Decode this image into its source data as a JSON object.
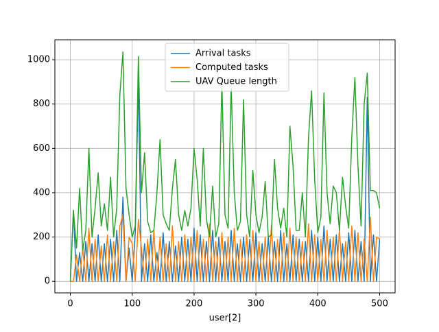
{
  "chart_data": {
    "type": "line",
    "x_label": "user[2]",
    "x": [
      0,
      5,
      10,
      15,
      20,
      25,
      30,
      35,
      40,
      45,
      50,
      55,
      60,
      65,
      70,
      75,
      80,
      85,
      90,
      95,
      100,
      105,
      110,
      115,
      120,
      125,
      130,
      135,
      140,
      145,
      150,
      155,
      160,
      165,
      170,
      175,
      180,
      185,
      190,
      195,
      200,
      205,
      210,
      215,
      220,
      225,
      230,
      235,
      240,
      245,
      250,
      255,
      260,
      265,
      270,
      275,
      280,
      285,
      290,
      295,
      300,
      305,
      310,
      315,
      320,
      325,
      330,
      335,
      340,
      345,
      350,
      355,
      360,
      365,
      370,
      375,
      380,
      385,
      390,
      395,
      400,
      405,
      410,
      415,
      420,
      425,
      430,
      435,
      440,
      445,
      450,
      455,
      460,
      465,
      470,
      475,
      480,
      485,
      490,
      495,
      500
    ],
    "series": [
      {
        "name": "Arrival tasks",
        "color": "#1f77b4",
        "values": [
          0,
          320,
          0,
          130,
          0,
          180,
          0,
          170,
          0,
          210,
          0,
          170,
          0,
          190,
          0,
          230,
          0,
          380,
          0,
          150,
          0,
          220,
          920,
          0,
          170,
          0,
          210,
          0,
          130,
          0,
          220,
          0,
          180,
          0,
          160,
          0,
          200,
          0,
          190,
          0,
          240,
          0,
          210,
          0,
          180,
          0,
          230,
          0,
          200,
          0,
          180,
          0,
          230,
          0,
          170,
          0,
          200,
          0,
          190,
          0,
          220,
          0,
          170,
          0,
          200,
          0,
          180,
          0,
          230,
          0,
          170,
          0,
          210,
          0,
          190,
          0,
          180,
          0,
          230,
          0,
          200,
          0,
          250,
          0,
          190,
          0,
          210,
          0,
          170,
          0,
          220,
          0,
          230,
          0,
          180,
          0,
          830,
          0,
          210,
          0,
          190
        ]
      },
      {
        "name": "Computed tasks",
        "color": "#ff7f0e",
        "values": [
          0,
          0,
          120,
          0,
          150,
          0,
          240,
          0,
          190,
          0,
          160,
          0,
          210,
          0,
          180,
          0,
          250,
          300,
          0,
          200,
          170,
          0,
          280,
          150,
          0,
          190,
          0,
          230,
          0,
          200,
          0,
          170,
          0,
          250,
          0,
          180,
          0,
          210,
          0,
          200,
          0,
          230,
          0,
          190,
          0,
          260,
          0,
          180,
          0,
          220,
          0,
          200,
          0,
          240,
          0,
          190,
          0,
          210,
          0,
          230,
          0,
          180,
          0,
          200,
          0,
          250,
          0,
          190,
          0,
          220,
          0,
          240,
          0,
          200,
          0,
          180,
          0,
          260,
          0,
          210,
          0,
          190,
          0,
          230,
          0,
          200,
          0,
          240,
          0,
          180,
          0,
          250,
          0,
          220,
          0,
          190,
          0,
          290,
          0,
          200,
          190
        ]
      },
      {
        "name": "UAV Queue length",
        "color": "#2ca02c",
        "values": [
          0,
          320,
          150,
          420,
          140,
          230,
          600,
          200,
          330,
          490,
          250,
          350,
          230,
          470,
          200,
          330,
          840,
          1035,
          420,
          300,
          200,
          250,
          1015,
          400,
          580,
          270,
          220,
          230,
          400,
          640,
          300,
          260,
          230,
          420,
          550,
          300,
          230,
          320,
          250,
          330,
          600,
          460,
          250,
          600,
          280,
          200,
          430,
          200,
          260,
          900,
          300,
          240,
          880,
          400,
          230,
          270,
          820,
          300,
          200,
          500,
          300,
          220,
          290,
          450,
          200,
          210,
          550,
          330,
          240,
          330,
          200,
          700,
          520,
          230,
          230,
          400,
          200,
          650,
          860,
          460,
          220,
          290,
          850,
          400,
          260,
          430,
          400,
          230,
          470,
          340,
          240,
          650,
          920,
          520,
          250,
          800,
          940,
          410,
          410,
          400,
          330
        ]
      }
    ],
    "xlim": [
      -25,
      525
    ],
    "ylim": [
      -52,
      1090
    ],
    "xticks": [
      0,
      100,
      200,
      300,
      400,
      500
    ],
    "yticks": [
      0,
      200,
      400,
      600,
      800,
      1000
    ],
    "grid": true,
    "legend": "upper center"
  }
}
